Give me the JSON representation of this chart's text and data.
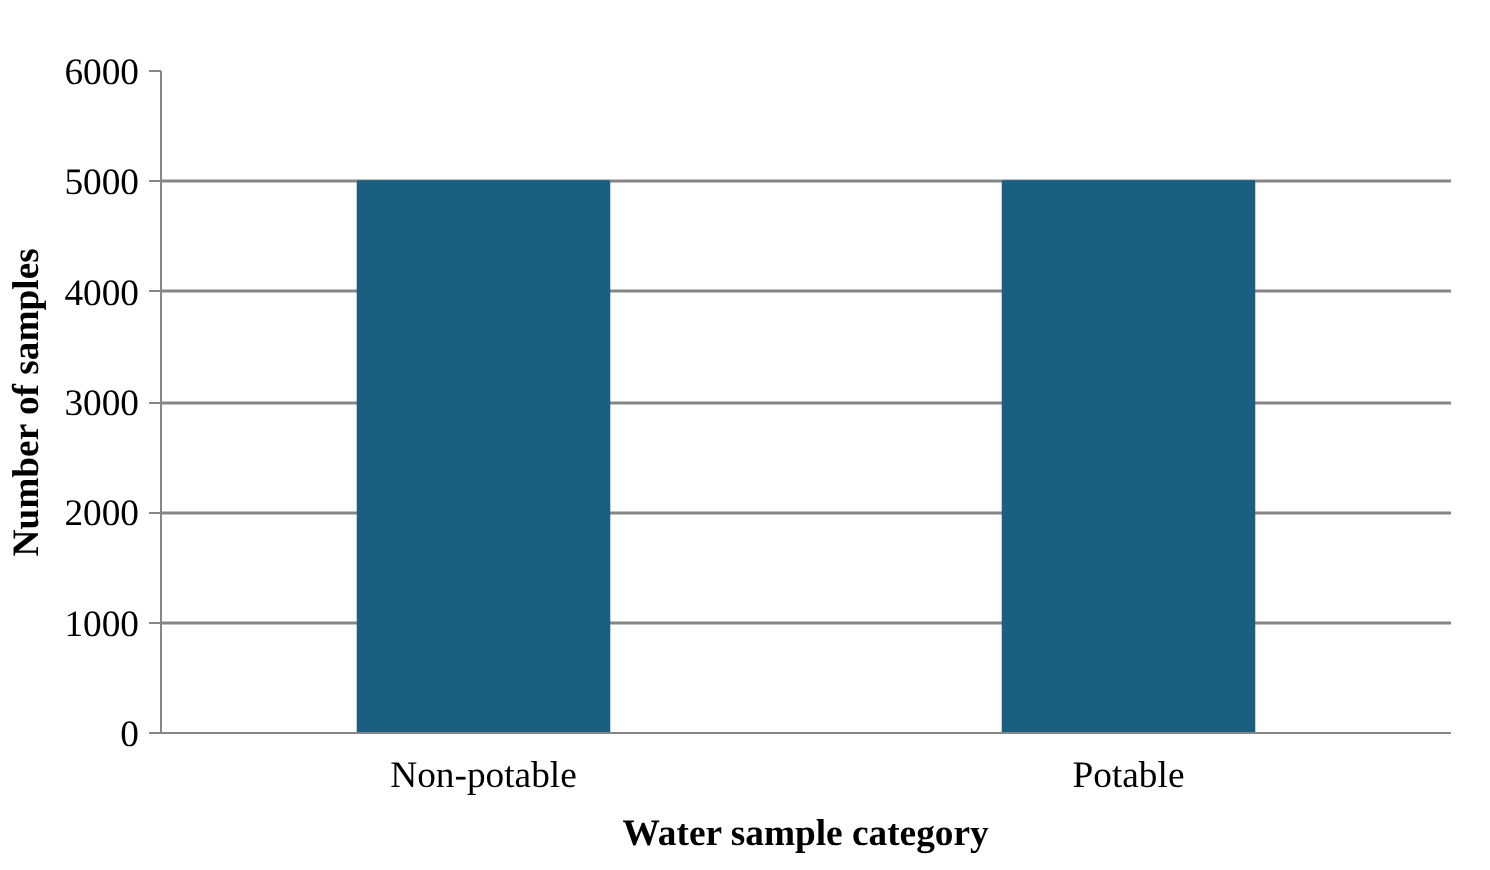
{
  "chart_data": {
    "type": "bar",
    "xlabel": "Water sample category",
    "ylabel": "Number of samples",
    "categories": [
      "Non-potable",
      "Potable"
    ],
    "values": [
      5000,
      5000
    ],
    "color": "#1a5f80",
    "ylim": [
      0,
      6000
    ],
    "yticks": [
      0,
      1000,
      2000,
      3000,
      4000,
      5000,
      6000
    ],
    "grid": "y"
  }
}
